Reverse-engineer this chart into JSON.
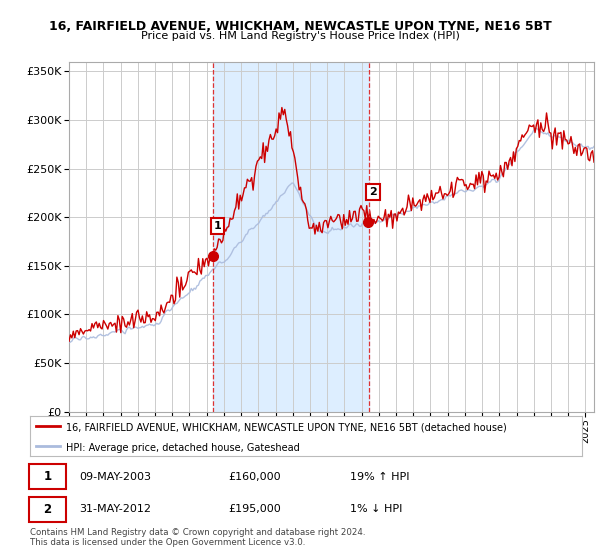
{
  "title1": "16, FAIRFIELD AVENUE, WHICKHAM, NEWCASTLE UPON TYNE, NE16 5BT",
  "title2": "Price paid vs. HM Land Registry's House Price Index (HPI)",
  "red_label": "16, FAIRFIELD AVENUE, WHICKHAM, NEWCASTLE UPON TYNE, NE16 5BT (detached house)",
  "blue_label": "HPI: Average price, detached house, Gateshead",
  "transaction1_date": "09-MAY-2003",
  "transaction1_price": "£160,000",
  "transaction1_hpi": "19% ↑ HPI",
  "transaction1_year": 2003.36,
  "transaction1_value": 160000,
  "transaction2_date": "31-MAY-2012",
  "transaction2_price": "£195,000",
  "transaction2_hpi": "1% ↓ HPI",
  "transaction2_year": 2012.41,
  "transaction2_value": 195000,
  "footer": "Contains HM Land Registry data © Crown copyright and database right 2024.\nThis data is licensed under the Open Government Licence v3.0.",
  "ylim": [
    0,
    360000
  ],
  "xlim_start": 1995.0,
  "xlim_end": 2025.5,
  "background_color": "#ffffff",
  "plot_bg_color": "#ffffff",
  "shaded_region_color": "#ddeeff",
  "grid_color": "#cccccc",
  "red_color": "#cc0000",
  "blue_color": "#aabbdd",
  "vline_color": "#dd3333"
}
